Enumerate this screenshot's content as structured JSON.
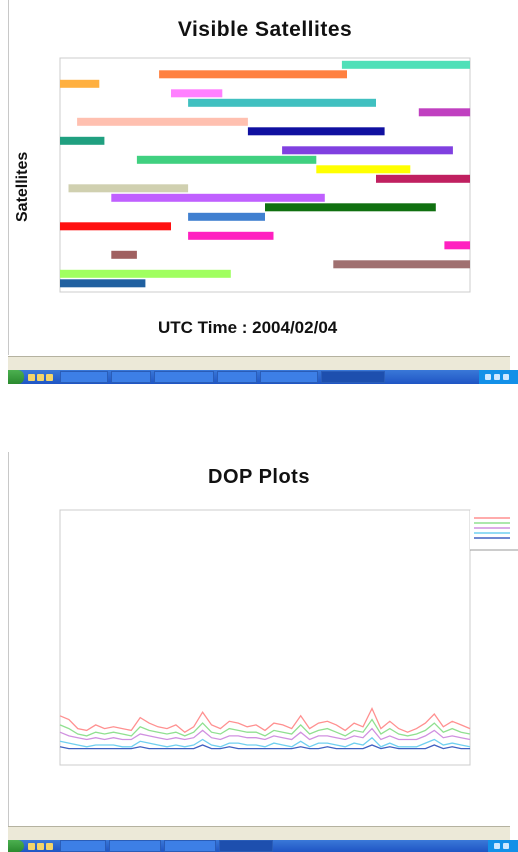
{
  "window1": {
    "status_bar": [
      "",
      "",
      "",
      ""
    ],
    "status_info": [
      "",
      "",
      ""
    ],
    "taskbar": {
      "start_label": "",
      "buttons": [
        "",
        "",
        "",
        "",
        "",
        ""
      ],
      "tray_time": ""
    }
  },
  "window2": {
    "status_bar": [
      "",
      "",
      "",
      ""
    ],
    "status_info": [
      "",
      "",
      ""
    ],
    "taskbar": {
      "start_label": "",
      "buttons": [
        "",
        "",
        "",
        ""
      ],
      "tray_time": ""
    }
  },
  "colors": {
    "taskbar": "#1f55c4",
    "start": "#2a8a2e",
    "plot_frame": "#cccccc"
  },
  "chart_data": [
    {
      "type": "bar",
      "title": "Visible Satellites",
      "xlabel": "UTC Time : 2004/02/04",
      "ylabel": "Satellites",
      "grid": false,
      "xlim": [
        0,
        24
      ],
      "bars": [
        {
          "start": 16.5,
          "end": 24.0,
          "color": "#4fe0b8"
        },
        {
          "start": 5.8,
          "end": 16.8,
          "color": "#ff8040"
        },
        {
          "start": 0.0,
          "end": 2.3,
          "color": "#ffb040"
        },
        {
          "start": 6.5,
          "end": 9.5,
          "color": "#ff80ff"
        },
        {
          "start": 7.5,
          "end": 18.5,
          "color": "#40c0c0"
        },
        {
          "start": 21.0,
          "end": 24.5,
          "color": "#c040c0"
        },
        {
          "start": 1.0,
          "end": 11.0,
          "color": "#ffc0b0"
        },
        {
          "start": 11.0,
          "end": 19.0,
          "color": "#1010a0"
        },
        {
          "start": 0.0,
          "end": 2.6,
          "color": "#20a080"
        },
        {
          "start": 13.0,
          "end": 23.0,
          "color": "#8040e0"
        },
        {
          "start": 4.5,
          "end": 15.0,
          "color": "#40d080"
        },
        {
          "start": 15.0,
          "end": 20.5,
          "color": "#ffff00"
        },
        {
          "start": 18.5,
          "end": 24.5,
          "color": "#c02060"
        },
        {
          "start": 0.5,
          "end": 7.5,
          "color": "#d0d0b0"
        },
        {
          "start": 3.0,
          "end": 15.5,
          "color": "#c060ff"
        },
        {
          "start": 12.0,
          "end": 22.0,
          "color": "#107010"
        },
        {
          "start": 7.5,
          "end": 12.0,
          "color": "#4080d0"
        },
        {
          "start": 0.0,
          "end": 6.5,
          "color": "#ff1010"
        },
        {
          "start": 7.5,
          "end": 12.5,
          "color": "#ff20c0"
        },
        {
          "start": 22.5,
          "end": 24.5,
          "color": "#ff20c0"
        },
        {
          "start": 3.0,
          "end": 4.5,
          "color": "#a06060"
        },
        {
          "start": 16.0,
          "end": 24.0,
          "color": "#a07070"
        },
        {
          "start": 0.0,
          "end": 10.0,
          "color": "#a0ff60"
        },
        {
          "start": 0.0,
          "end": 5.0,
          "color": "#2060a0"
        }
      ]
    },
    {
      "type": "line",
      "title": "DOP Plots",
      "xlabel": "",
      "ylabel": "",
      "grid": false,
      "legend": "top-right",
      "xlim": [
        0,
        24
      ],
      "ylim": [
        0,
        14
      ],
      "series": [
        {
          "color": "#ff9090",
          "values": [
            2.7,
            2.5,
            2.0,
            1.9,
            2.2,
            2.0,
            2.1,
            2.0,
            1.9,
            2.6,
            2.3,
            2.1,
            2.0,
            2.2,
            1.8,
            2.1,
            2.9,
            2.2,
            2.0,
            2.4,
            2.3,
            2.1,
            2.2,
            1.9,
            2.3,
            2.2,
            2.0,
            2.7,
            2.0,
            2.3,
            2.4,
            2.2,
            1.9,
            2.3,
            2.1,
            3.1,
            2.0,
            2.4,
            2.0,
            1.8,
            2.0,
            2.3,
            2.8,
            2.1,
            2.4,
            2.2,
            2.0
          ]
        },
        {
          "color": "#90e090",
          "values": [
            2.2,
            2.0,
            1.7,
            1.6,
            1.8,
            1.7,
            1.8,
            1.7,
            1.6,
            2.1,
            1.9,
            1.8,
            1.7,
            1.8,
            1.6,
            1.8,
            2.3,
            1.8,
            1.7,
            2.0,
            1.9,
            1.8,
            1.8,
            1.6,
            1.9,
            1.8,
            1.7,
            2.2,
            1.7,
            1.9,
            2.0,
            1.8,
            1.6,
            1.9,
            1.8,
            2.5,
            1.7,
            2.0,
            1.7,
            1.6,
            1.7,
            1.9,
            2.3,
            1.8,
            2.0,
            1.8,
            1.7
          ]
        },
        {
          "color": "#d090e0",
          "values": [
            1.8,
            1.6,
            1.5,
            1.4,
            1.5,
            1.4,
            1.5,
            1.4,
            1.4,
            1.7,
            1.6,
            1.5,
            1.4,
            1.5,
            1.4,
            1.5,
            1.9,
            1.5,
            1.4,
            1.6,
            1.6,
            1.5,
            1.5,
            1.4,
            1.6,
            1.5,
            1.4,
            1.8,
            1.4,
            1.6,
            1.6,
            1.5,
            1.4,
            1.6,
            1.5,
            2.0,
            1.4,
            1.6,
            1.4,
            1.4,
            1.4,
            1.6,
            1.9,
            1.5,
            1.6,
            1.5,
            1.4
          ]
        },
        {
          "color": "#70d0f0",
          "values": [
            1.3,
            1.2,
            1.1,
            1.0,
            1.1,
            1.1,
            1.1,
            1.0,
            1.0,
            1.3,
            1.2,
            1.1,
            1.0,
            1.1,
            1.0,
            1.1,
            1.4,
            1.1,
            1.0,
            1.2,
            1.2,
            1.1,
            1.1,
            1.0,
            1.2,
            1.1,
            1.0,
            1.3,
            1.0,
            1.2,
            1.2,
            1.1,
            1.0,
            1.2,
            1.1,
            1.5,
            1.0,
            1.2,
            1.0,
            1.0,
            1.0,
            1.2,
            1.4,
            1.1,
            1.2,
            1.1,
            1.0
          ]
        },
        {
          "color": "#4060c0",
          "values": [
            1.0,
            0.9,
            0.9,
            0.9,
            0.9,
            0.9,
            0.9,
            0.9,
            0.9,
            1.0,
            0.9,
            0.9,
            0.9,
            0.9,
            0.9,
            0.9,
            1.1,
            0.9,
            0.9,
            1.0,
            0.9,
            0.9,
            0.9,
            0.9,
            0.9,
            0.9,
            0.9,
            1.0,
            0.9,
            0.9,
            1.0,
            0.9,
            0.9,
            0.9,
            0.9,
            1.1,
            0.9,
            1.0,
            0.9,
            0.9,
            0.9,
            0.9,
            1.1,
            0.9,
            1.0,
            0.9,
            0.9
          ]
        }
      ]
    }
  ]
}
